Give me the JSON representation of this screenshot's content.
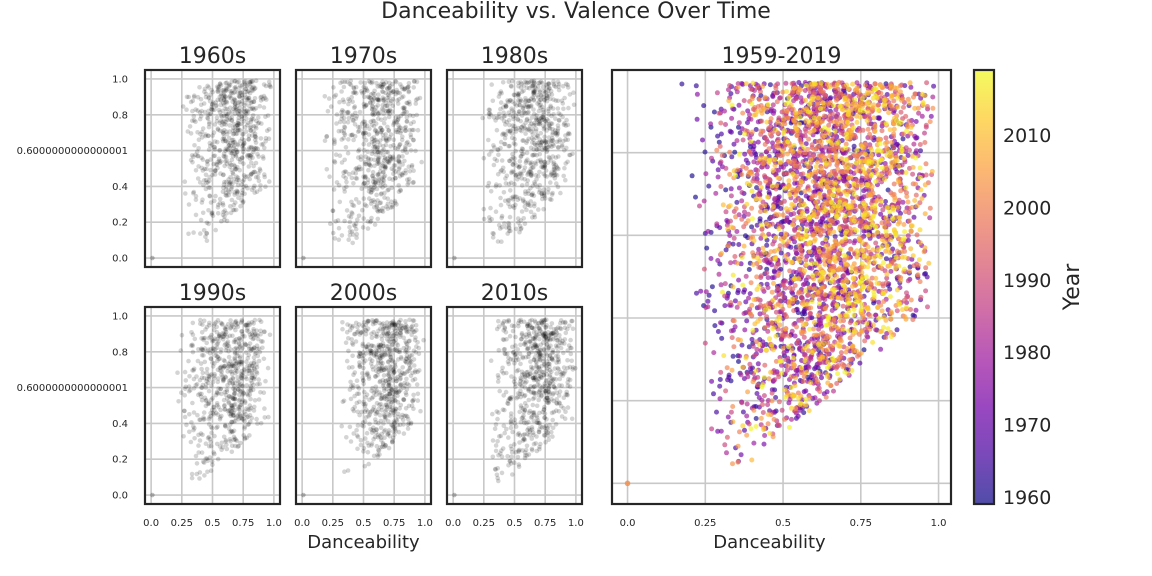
{
  "chart_data": {
    "title": "Danceability vs. Valence Over Time",
    "panels": [
      {
        "id": "p1960",
        "type": "scatter",
        "title": "1960s",
        "xlabel": "",
        "x_ticks": [
          0.0,
          0.25,
          0.5,
          0.75,
          1.0
        ],
        "x_tick_labels": [
          "0.0",
          "0.25",
          "0.5",
          "0.75",
          "1.0"
        ],
        "y_ticks": [
          0.0,
          0.2,
          0.4,
          0.6,
          0.8,
          1.0
        ],
        "y_tick_labels": [
          "0.0",
          "0.2",
          "0.4",
          "0.6000000000000001",
          "0.8",
          "1.0"
        ],
        "ylim": [
          -0.05,
          1.05
        ],
        "xlim": [
          -0.05,
          1.05
        ],
        "point_color": "#000000",
        "cloud": {
          "n": 650,
          "xmin": 0.25,
          "xmax": 1.0,
          "xmode": 0.68,
          "ymin": 0.08,
          "ymax": 0.99
        }
      },
      {
        "id": "p1970",
        "type": "scatter",
        "title": "1970s",
        "xlabel": "",
        "x_ticks": [
          0.0,
          0.25,
          0.5,
          0.75,
          1.0
        ],
        "x_tick_labels": [
          "0.0",
          "0.25",
          "0.5",
          "0.75",
          "1.0"
        ],
        "y_ticks": [
          0.0,
          0.2,
          0.4,
          0.6,
          0.8,
          1.0
        ],
        "ylim": [
          -0.05,
          1.05
        ],
        "xlim": [
          -0.05,
          1.05
        ],
        "point_color": "#000000",
        "cloud": {
          "n": 650,
          "xmin": 0.15,
          "xmax": 1.0,
          "xmode": 0.65,
          "ymin": 0.08,
          "ymax": 0.99
        }
      },
      {
        "id": "p1980",
        "type": "scatter",
        "title": "1980s",
        "xlabel": "",
        "x_ticks": [
          0.0,
          0.25,
          0.5,
          0.75,
          1.0
        ],
        "x_tick_labels": [
          "0.0",
          "0.25",
          "0.5",
          "0.75",
          "1.0"
        ],
        "y_ticks": [
          0.0,
          0.2,
          0.4,
          0.6,
          0.8,
          1.0
        ],
        "ylim": [
          -0.05,
          1.05
        ],
        "xlim": [
          -0.05,
          1.05
        ],
        "point_color": "#000000",
        "cloud": {
          "n": 650,
          "xmin": 0.2,
          "xmax": 1.0,
          "xmode": 0.68,
          "ymin": 0.06,
          "ymax": 0.99
        }
      },
      {
        "id": "p1990",
        "type": "scatter",
        "title": "1990s",
        "xlabel": "",
        "x_ticks": [
          0.0,
          0.25,
          0.5,
          0.75,
          1.0
        ],
        "x_tick_labels": [
          "0.0",
          "0.25",
          "0.5",
          "0.75",
          "1.0"
        ],
        "y_ticks": [
          0.0,
          0.2,
          0.4,
          0.6,
          0.8,
          1.0
        ],
        "y_tick_labels": [
          "0.0",
          "0.2",
          "0.4",
          "0.6000000000000001",
          "0.8",
          "1.0"
        ],
        "ylim": [
          -0.05,
          1.05
        ],
        "xlim": [
          -0.05,
          1.05
        ],
        "point_color": "#000000",
        "cloud": {
          "n": 650,
          "xmin": 0.2,
          "xmax": 1.0,
          "xmode": 0.68,
          "ymin": 0.04,
          "ymax": 0.98
        }
      },
      {
        "id": "p2000",
        "type": "scatter",
        "title": "2000s",
        "xlabel": "Danceability",
        "x_ticks": [
          0.0,
          0.25,
          0.5,
          0.75,
          1.0
        ],
        "x_tick_labels": [
          "0.0",
          "0.25",
          "0.5",
          "0.75",
          "1.0"
        ],
        "y_ticks": [
          0.0,
          0.2,
          0.4,
          0.6,
          0.8,
          1.0
        ],
        "ylim": [
          -0.05,
          1.05
        ],
        "xlim": [
          -0.05,
          1.05
        ],
        "point_color": "#000000",
        "cloud": {
          "n": 650,
          "xmin": 0.3,
          "xmax": 1.0,
          "xmode": 0.7,
          "ymin": 0.04,
          "ymax": 0.98
        }
      },
      {
        "id": "p2010",
        "type": "scatter",
        "title": "2010s",
        "xlabel": "",
        "x_ticks": [
          0.0,
          0.25,
          0.5,
          0.75,
          1.0
        ],
        "x_tick_labels": [
          "0.0",
          "0.25",
          "0.5",
          "0.75",
          "1.0"
        ],
        "y_ticks": [
          0.0,
          0.2,
          0.4,
          0.6,
          0.8,
          1.0
        ],
        "ylim": [
          -0.05,
          1.05
        ],
        "xlim": [
          -0.05,
          1.05
        ],
        "point_color": "#000000",
        "cloud": {
          "n": 650,
          "xmin": 0.3,
          "xmax": 1.0,
          "xmode": 0.7,
          "ymin": 0.04,
          "ymax": 0.98
        }
      }
    ],
    "combined": {
      "type": "scatter",
      "title": "1959-2019",
      "xlabel": "Danceability",
      "x_ticks": [
        0.0,
        0.25,
        0.5,
        0.75,
        1.0
      ],
      "x_tick_labels": [
        "0.0",
        "0.25",
        "0.5",
        "0.75",
        "1.0"
      ],
      "y_gridlines": [
        0.0,
        0.2,
        0.4,
        0.6,
        0.8,
        1.0
      ],
      "xlim": [
        -0.05,
        1.04
      ],
      "ylim": [
        -0.05,
        1.0
      ],
      "color_by": "Year",
      "colormap": "plasma",
      "cloud": {
        "n": 3600,
        "xmin": 0.15,
        "xmax": 1.0,
        "ymin": 0.03,
        "ymax": 0.97,
        "year_min": 1959,
        "year_max": 2019
      }
    },
    "colorbar": {
      "label": "Year",
      "ticks": [
        1960,
        1970,
        1980,
        1990,
        2000,
        2010
      ],
      "range": [
        1959,
        2019
      ],
      "stops": [
        "#0d0887",
        "#46039f",
        "#7201a8",
        "#9c179e",
        "#bd3786",
        "#d8576b",
        "#ed7953",
        "#fb9f3a",
        "#fdca26",
        "#f0f921"
      ]
    }
  }
}
